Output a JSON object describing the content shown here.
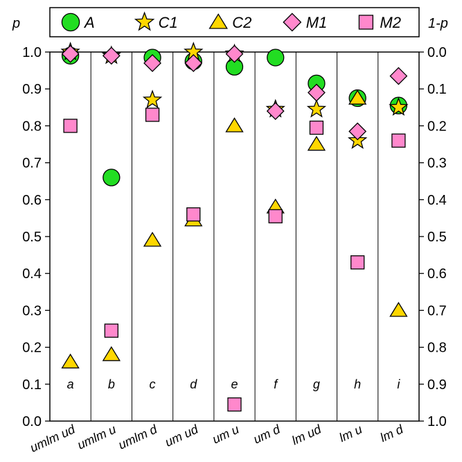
{
  "chart_data": {
    "type": "scatter",
    "ylabel": "p",
    "ylabel_right": "1-p",
    "ylim": [
      0,
      1
    ],
    "yticks": [
      "0.0",
      "0.1",
      "0.2",
      "0.3",
      "0.4",
      "0.5",
      "0.6",
      "0.7",
      "0.8",
      "0.9",
      "1.0"
    ],
    "yticks_right": [
      "1.0",
      "0.9",
      "0.8",
      "0.7",
      "0.6",
      "0.5",
      "0.4",
      "0.3",
      "0.2",
      "0.1",
      "0.0"
    ],
    "categories": [
      "umlm ud",
      "umlm u",
      "umlm d",
      "um ud",
      "um u",
      "um d",
      "lm ud",
      "lm u",
      "lm d"
    ],
    "panel_letters": [
      "a",
      "b",
      "c",
      "d",
      "e",
      "f",
      "g",
      "h",
      "i"
    ],
    "legend_position": "top",
    "series": [
      {
        "name": "A",
        "marker": "circle",
        "color": "#22dd22",
        "values": [
          0.99,
          0.66,
          0.985,
          0.975,
          0.96,
          0.985,
          0.915,
          0.875,
          0.855
        ]
      },
      {
        "name": "C1",
        "marker": "star",
        "color": "#ffd700",
        "values": [
          1.0,
          0.99,
          0.87,
          1.0,
          0.995,
          0.845,
          0.845,
          0.76,
          0.85
        ]
      },
      {
        "name": "C2",
        "marker": "triangle",
        "color": "#ffd700",
        "values": [
          0.16,
          0.18,
          0.49,
          0.545,
          0.8,
          0.58,
          0.75,
          0.875,
          0.3
        ]
      },
      {
        "name": "M1",
        "marker": "diamond",
        "color": "#ff88cc",
        "values": [
          0.995,
          0.99,
          0.97,
          0.97,
          0.995,
          0.84,
          0.89,
          0.785,
          0.935
        ]
      },
      {
        "name": "M2",
        "marker": "square",
        "color": "#ff88cc",
        "values": [
          0.8,
          0.245,
          0.83,
          0.56,
          0.045,
          0.555,
          0.795,
          0.43,
          0.76
        ]
      }
    ]
  }
}
